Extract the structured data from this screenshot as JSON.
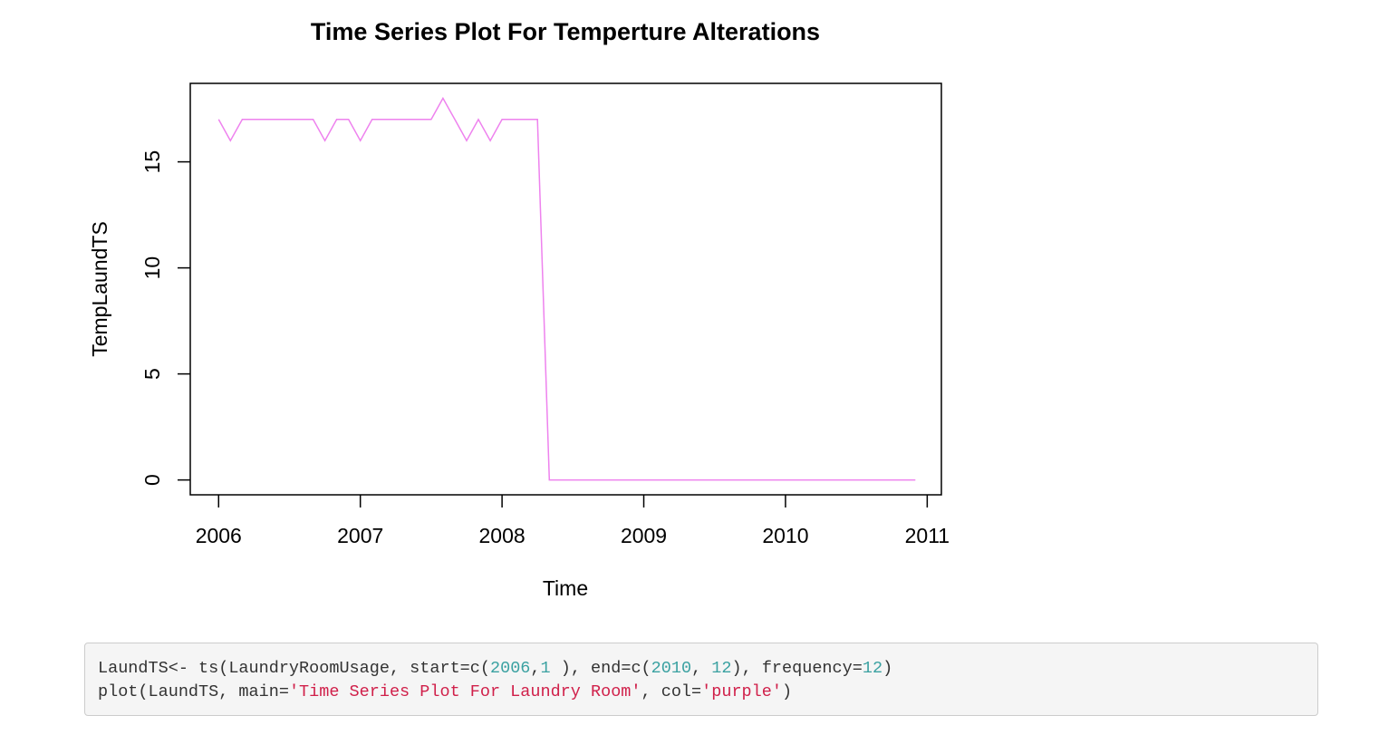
{
  "colors": {
    "series_line": "#ee82ee",
    "axis": "#000000",
    "code_background": "#f5f5f5",
    "code_border": "#cccccc",
    "code_text": "#333333",
    "code_number": "#3aa1a1",
    "code_string": "#d0204a"
  },
  "chart_data": {
    "type": "line",
    "title": "Time Series Plot For Temperture Alterations",
    "xlabel": "Time",
    "ylabel": "TempLaundTS",
    "xlim": [
      2005.8,
      2011.1
    ],
    "ylim": [
      -0.7,
      18.7
    ],
    "x_ticks": [
      2006,
      2007,
      2008,
      2009,
      2010,
      2011
    ],
    "x_tick_labels": [
      "2006",
      "2007",
      "2008",
      "2009",
      "2010",
      "2011"
    ],
    "y_ticks": [
      0,
      5,
      10,
      15
    ],
    "y_tick_labels": [
      "0",
      "5",
      "10",
      "15"
    ],
    "grid": false,
    "series": [
      {
        "frequency": 12,
        "start": "2006-01",
        "end": "2010-12",
        "values": [
          17,
          16,
          17,
          17,
          17,
          17,
          17,
          17,
          17,
          16,
          17,
          17,
          16,
          17,
          17,
          17,
          17,
          17,
          17,
          18,
          17,
          16,
          17,
          16,
          17,
          17,
          17,
          17,
          0,
          0,
          0,
          0,
          0,
          0,
          0,
          0,
          0,
          0,
          0,
          0,
          0,
          0,
          0,
          0,
          0,
          0,
          0,
          0,
          0,
          0,
          0,
          0,
          0,
          0,
          0,
          0,
          0,
          0,
          0,
          0
        ]
      }
    ]
  },
  "code": {
    "line1": [
      {
        "t": "LaundTS<- ts(LaundryRoomUsage, start=c(",
        "k": "plain"
      },
      {
        "t": "2006",
        "k": "num"
      },
      {
        "t": ",",
        "k": "plain"
      },
      {
        "t": "1",
        "k": "num"
      },
      {
        "t": " ), end=c(",
        "k": "plain"
      },
      {
        "t": "2010",
        "k": "num"
      },
      {
        "t": ", ",
        "k": "plain"
      },
      {
        "t": "12",
        "k": "num"
      },
      {
        "t": "), frequency=",
        "k": "plain"
      },
      {
        "t": "12",
        "k": "num"
      },
      {
        "t": ")",
        "k": "plain"
      }
    ],
    "line2": [
      {
        "t": "plot(LaundTS, main=",
        "k": "plain"
      },
      {
        "t": "'Time Series Plot For Laundry Room'",
        "k": "str"
      },
      {
        "t": ", col=",
        "k": "plain"
      },
      {
        "t": "'purple'",
        "k": "str"
      },
      {
        "t": ")",
        "k": "plain"
      }
    ]
  }
}
